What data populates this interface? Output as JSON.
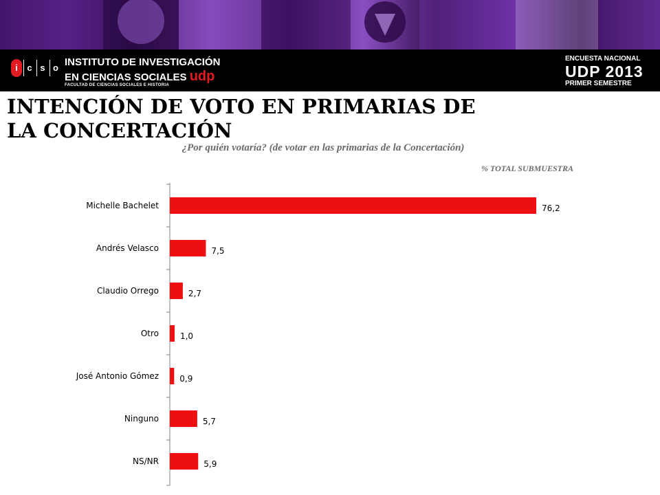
{
  "header": {
    "logo_letters": [
      "i",
      "c",
      "s",
      "o"
    ],
    "institute_line1": "INSTITUTO DE INVESTIGACIÓN",
    "institute_line2": "EN CIENCIAS SOCIALES",
    "institute_brand": "udp",
    "institute_line3": "FACULTAD DE CIENCIAS SOCIALES E HISTORIA",
    "survey_line1": "ENCUESTA NACIONAL",
    "survey_line2": "UDP 2013",
    "survey_line3": "PRIMER SEMESTRE"
  },
  "colors": {
    "bar": "#ee1010",
    "banner_bg": "#000000",
    "accent_purple": "#6a2a9e",
    "brand_red": "#e21a22",
    "axis": "#808080"
  },
  "title": "INTENCIÓN DE VOTO EN PRIMARIAS DE LA CONCERTACIÓN",
  "subtitle": "¿Por quién votaría? (de votar en las primarias de la Concertación)",
  "unit_note": "% TOTAL SUBMUESTRA",
  "chart_data": {
    "type": "bar",
    "orientation": "horizontal",
    "categories": [
      "Michelle Bachelet",
      "Andrés Velasco",
      "Claudio Orrego",
      "Otro",
      "José Antonio Gómez",
      "Ninguno",
      "NS/NR"
    ],
    "values": [
      76.2,
      7.5,
      2.7,
      1.0,
      0.9,
      5.7,
      5.9
    ],
    "value_labels": [
      "76,2",
      "7,5",
      "2,7",
      "1,0",
      "0,9",
      "5,7",
      "5,9"
    ],
    "xlim": [
      0,
      80
    ],
    "grid": false,
    "legend": "none"
  }
}
